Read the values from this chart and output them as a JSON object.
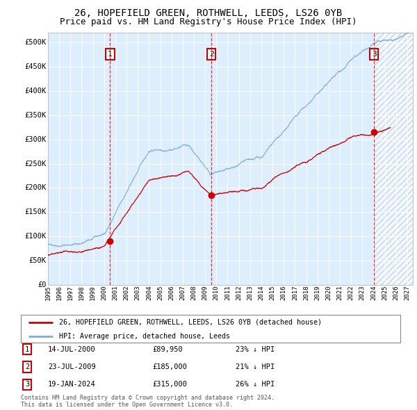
{
  "title": "26, HOPEFIELD GREEN, ROTHWELL, LEEDS, LS26 0YB",
  "subtitle": "Price paid vs. HM Land Registry's House Price Index (HPI)",
  "xlim_start": 1995.0,
  "xlim_end": 2027.5,
  "ylim_min": 0,
  "ylim_max": 520000,
  "yticks": [
    0,
    50000,
    100000,
    150000,
    200000,
    250000,
    300000,
    350000,
    400000,
    450000,
    500000
  ],
  "ytick_labels": [
    "£0",
    "£50K",
    "£100K",
    "£150K",
    "£200K",
    "£250K",
    "£300K",
    "£350K",
    "£400K",
    "£450K",
    "£500K"
  ],
  "xtick_years": [
    1995,
    1996,
    1997,
    1998,
    1999,
    2000,
    2001,
    2002,
    2003,
    2004,
    2005,
    2006,
    2007,
    2008,
    2009,
    2010,
    2011,
    2012,
    2013,
    2014,
    2015,
    2016,
    2017,
    2018,
    2019,
    2020,
    2021,
    2022,
    2023,
    2024,
    2025,
    2026,
    2027
  ],
  "sale1_date": 2000.538,
  "sale1_price": 89950,
  "sale1_label": "1",
  "sale2_date": 2009.554,
  "sale2_price": 185000,
  "sale2_label": "2",
  "sale3_date": 2024.054,
  "sale3_price": 315000,
  "sale3_label": "3",
  "hpi_color": "#7aaed6",
  "price_color": "#cc0000",
  "bg_color": "#ddeeff",
  "grid_color": "#ffffff",
  "legend_label_price": "26, HOPEFIELD GREEN, ROTHWELL, LEEDS, LS26 0YB (detached house)",
  "legend_label_hpi": "HPI: Average price, detached house, Leeds",
  "table_row1": [
    "1",
    "14-JUL-2000",
    "£89,950",
    "23% ↓ HPI"
  ],
  "table_row2": [
    "2",
    "23-JUL-2009",
    "£185,000",
    "21% ↓ HPI"
  ],
  "table_row3": [
    "3",
    "19-JAN-2024",
    "£315,000",
    "26% ↓ HPI"
  ],
  "footer": "Contains HM Land Registry data © Crown copyright and database right 2024.\nThis data is licensed under the Open Government Licence v3.0.",
  "title_fontsize": 10,
  "subtitle_fontsize": 9
}
